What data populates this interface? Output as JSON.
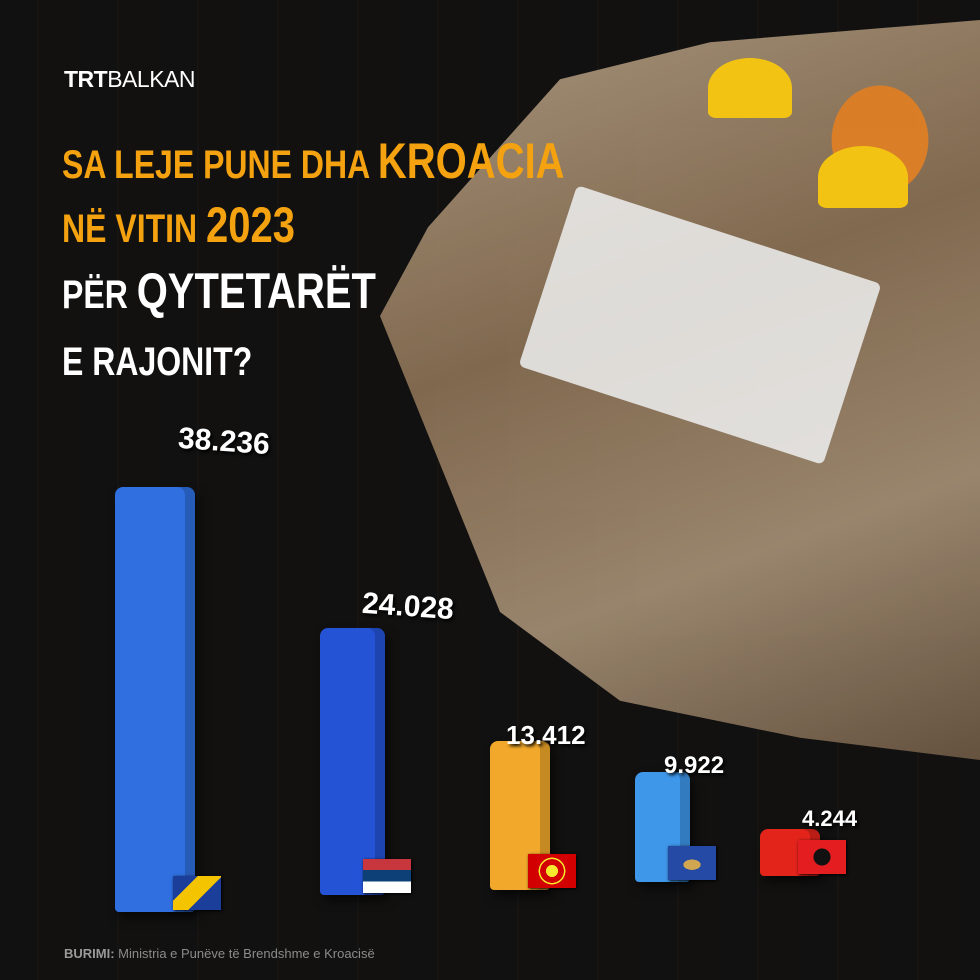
{
  "brand": {
    "logo_bold": "TRT",
    "logo_light": "BALKAN"
  },
  "title": {
    "line1_a": "SA LEJE PUNE DHA ",
    "line1_b": "KROACIA",
    "line2_a": "NË VITIN ",
    "line2_b": "2023",
    "line3_a": "PËR ",
    "line3_b": "QYTETARËT",
    "line4": "E RAJONIT?"
  },
  "chart_data": {
    "type": "bar",
    "title": "SA LEJE PUNE DHA KROACIA NË VITIN 2023 PËR QYTETARËT E RAJONIT?",
    "categories": [
      "Bosnia and Herzegovina",
      "Serbia",
      "North Macedonia",
      "Kosovo",
      "Albania"
    ],
    "values": [
      38236,
      24028,
      13412,
      9922,
      4244
    ],
    "labels": [
      "38.236",
      "24.028",
      "13.412",
      "9.922",
      "4.244"
    ],
    "colors": [
      "#2f6fe0",
      "#2553d6",
      "#f2a92b",
      "#3f97ea",
      "#e3241b"
    ],
    "flag_icons": [
      "flag-bosnia-icon",
      "flag-serbia-icon",
      "flag-north-macedonia-icon",
      "flag-kosovo-icon",
      "flag-albania-icon"
    ],
    "grid": false
  },
  "source": {
    "label": "BURIMI:",
    "text": " Ministria e Punëve të Brendshme e Kroacisë"
  }
}
